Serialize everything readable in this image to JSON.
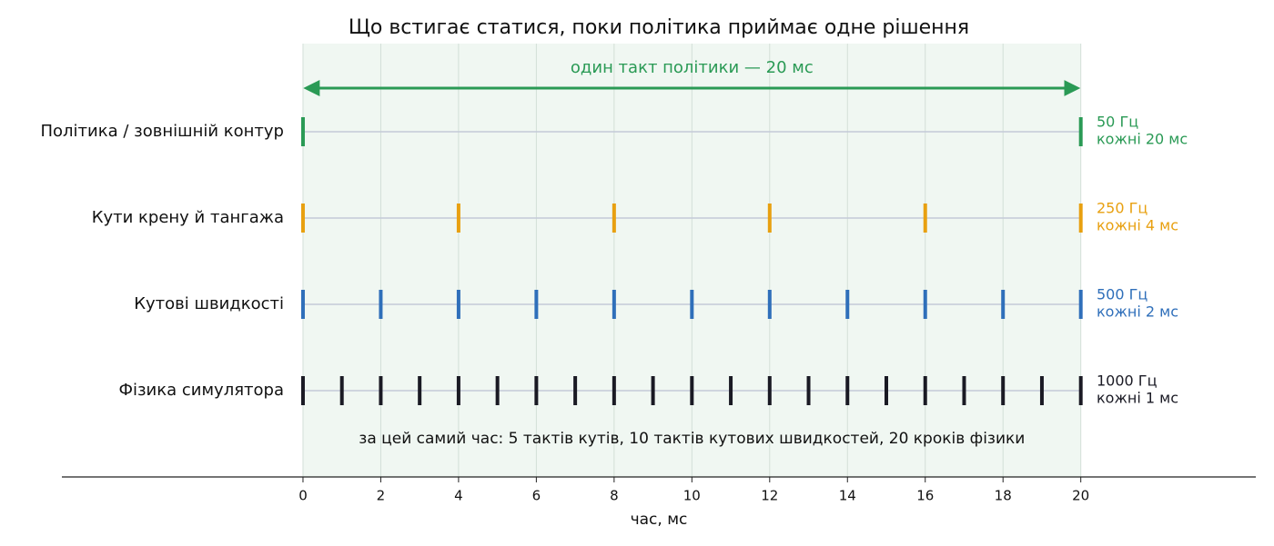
{
  "chart_data": {
    "type": "eventplot",
    "title": "Що встигає статися, поки політика приймає одне рішення",
    "xlabel": "час, мс",
    "xlim": [
      -6.2,
      24.5
    ],
    "xticks": [
      0,
      2,
      4,
      6,
      8,
      10,
      12,
      14,
      16,
      18,
      20
    ],
    "grid": true,
    "span": [
      0,
      20
    ],
    "span_label": "один такт політики — 20 мс",
    "note": "за цей самий час: 5 тактів кутів, 10 тактів кутових швидкостей, 20 кроків фізики",
    "series": [
      {
        "name": "Політика / зовнішній контур",
        "color": "#2a9a55",
        "rate": "50 Гц",
        "period": "кожні 20 мс",
        "values": [
          0,
          20
        ]
      },
      {
        "name": "Кути крену й тангажа",
        "color": "#e8a010",
        "rate": "250 Гц",
        "period": "кожні 4 мс",
        "values": [
          0,
          4,
          8,
          12,
          16,
          20
        ]
      },
      {
        "name": "Кутові швидкості",
        "color": "#2f6fba",
        "rate": "500 Гц",
        "period": "кожні 2 мс",
        "values": [
          0,
          2,
          4,
          6,
          8,
          10,
          12,
          14,
          16,
          18,
          20
        ]
      },
      {
        "name": "Фізика симулятора",
        "color": "#1a1a24",
        "rate": "1000 Гц",
        "period": "кожні 1 мс",
        "values": [
          0,
          1,
          2,
          3,
          4,
          5,
          6,
          7,
          8,
          9,
          10,
          11,
          12,
          13,
          14,
          15,
          16,
          17,
          18,
          19,
          20
        ]
      }
    ]
  }
}
